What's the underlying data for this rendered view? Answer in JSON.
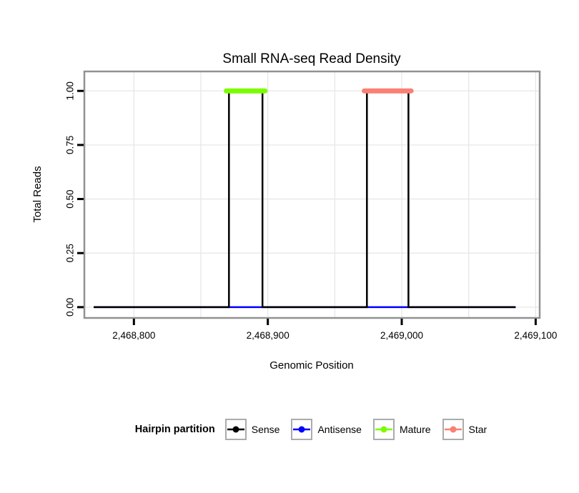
{
  "chart_data": {
    "type": "line",
    "title": "Small RNA-seq Read Density",
    "xlabel": "Genomic Position",
    "ylabel": "Total Reads",
    "xlim": [
      2468763,
      2469103
    ],
    "ylim": [
      -0.05,
      1.09
    ],
    "xticks": [
      2468800,
      2468900,
      2469000,
      2469100
    ],
    "xtick_labels": [
      "2,468,800",
      "2,468,900",
      "2,469,000",
      "2,469,100"
    ],
    "x_minor_gridlines": [
      2468850,
      2468950,
      2469050
    ],
    "yticks": [
      0,
      0.25,
      0.5,
      0.75,
      1.0
    ],
    "ytick_labels": [
      "0.00",
      "0.25",
      "0.50",
      "0.75",
      "1.00"
    ],
    "grid": true,
    "colors": {
      "panel_border": "#919191",
      "gridline": "#E7E7E7",
      "tick": "#000000",
      "panel_background": "#FFFFFF"
    },
    "series": [
      {
        "name": "Antisense",
        "color": "#0000FF",
        "stroke_width": 2.5,
        "segments": [
          [
            [
              2468770,
              0
            ],
            [
              2469085,
              0
            ]
          ]
        ]
      },
      {
        "name": "Sense",
        "color": "#000000",
        "stroke_width": 2.5,
        "segments": [
          [
            [
              2468770,
              0
            ],
            [
              2468871,
              0
            ],
            [
              2468871,
              1
            ],
            [
              2468896,
              1
            ],
            [
              2468896,
              0
            ],
            [
              2468974,
              0
            ],
            [
              2468974,
              1
            ],
            [
              2469005,
              1
            ],
            [
              2469005,
              0
            ],
            [
              2469085,
              0
            ]
          ]
        ]
      },
      {
        "name": "Mature",
        "color": "#7CFC00",
        "stroke_width": 7,
        "segments": [
          [
            [
              2468869,
              1
            ],
            [
              2468898,
              1
            ]
          ]
        ]
      },
      {
        "name": "Star",
        "color": "#FA8072",
        "stroke_width": 7,
        "segments": [
          [
            [
              2468972,
              1
            ],
            [
              2469007,
              1
            ]
          ]
        ]
      }
    ]
  },
  "legend": {
    "title": "Hairpin partition",
    "items": [
      {
        "label": "Sense",
        "color": "#000000"
      },
      {
        "label": "Antisense",
        "color": "#0000FF"
      },
      {
        "label": "Mature",
        "color": "#7CFC00"
      },
      {
        "label": "Star",
        "color": "#FA8072"
      }
    ]
  }
}
